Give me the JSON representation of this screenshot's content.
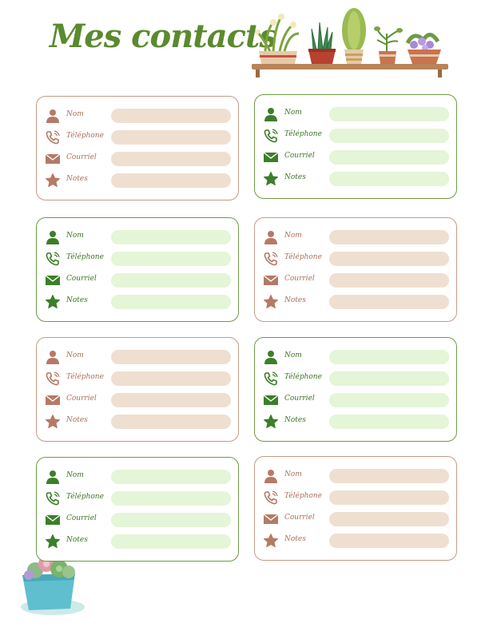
{
  "title": "Mes contacts",
  "field_labels": {
    "name": "Nom",
    "phone": "Téléphone",
    "email": "Courriel",
    "notes": "Notes"
  },
  "cards": [
    {
      "theme": "brown"
    },
    {
      "theme": "green"
    },
    {
      "theme": "green"
    },
    {
      "theme": "brown"
    },
    {
      "theme": "brown"
    },
    {
      "theme": "green"
    },
    {
      "theme": "green"
    },
    {
      "theme": "brown"
    }
  ],
  "colors": {
    "title": "#5a8a2e",
    "brown_accent": "#b57a66",
    "brown_field": "#efdfd1",
    "green_accent": "#3d7e2a",
    "green_field": "#e5f5d7"
  },
  "icons": [
    "person-icon",
    "phone-icon",
    "envelope-icon",
    "star-icon"
  ]
}
